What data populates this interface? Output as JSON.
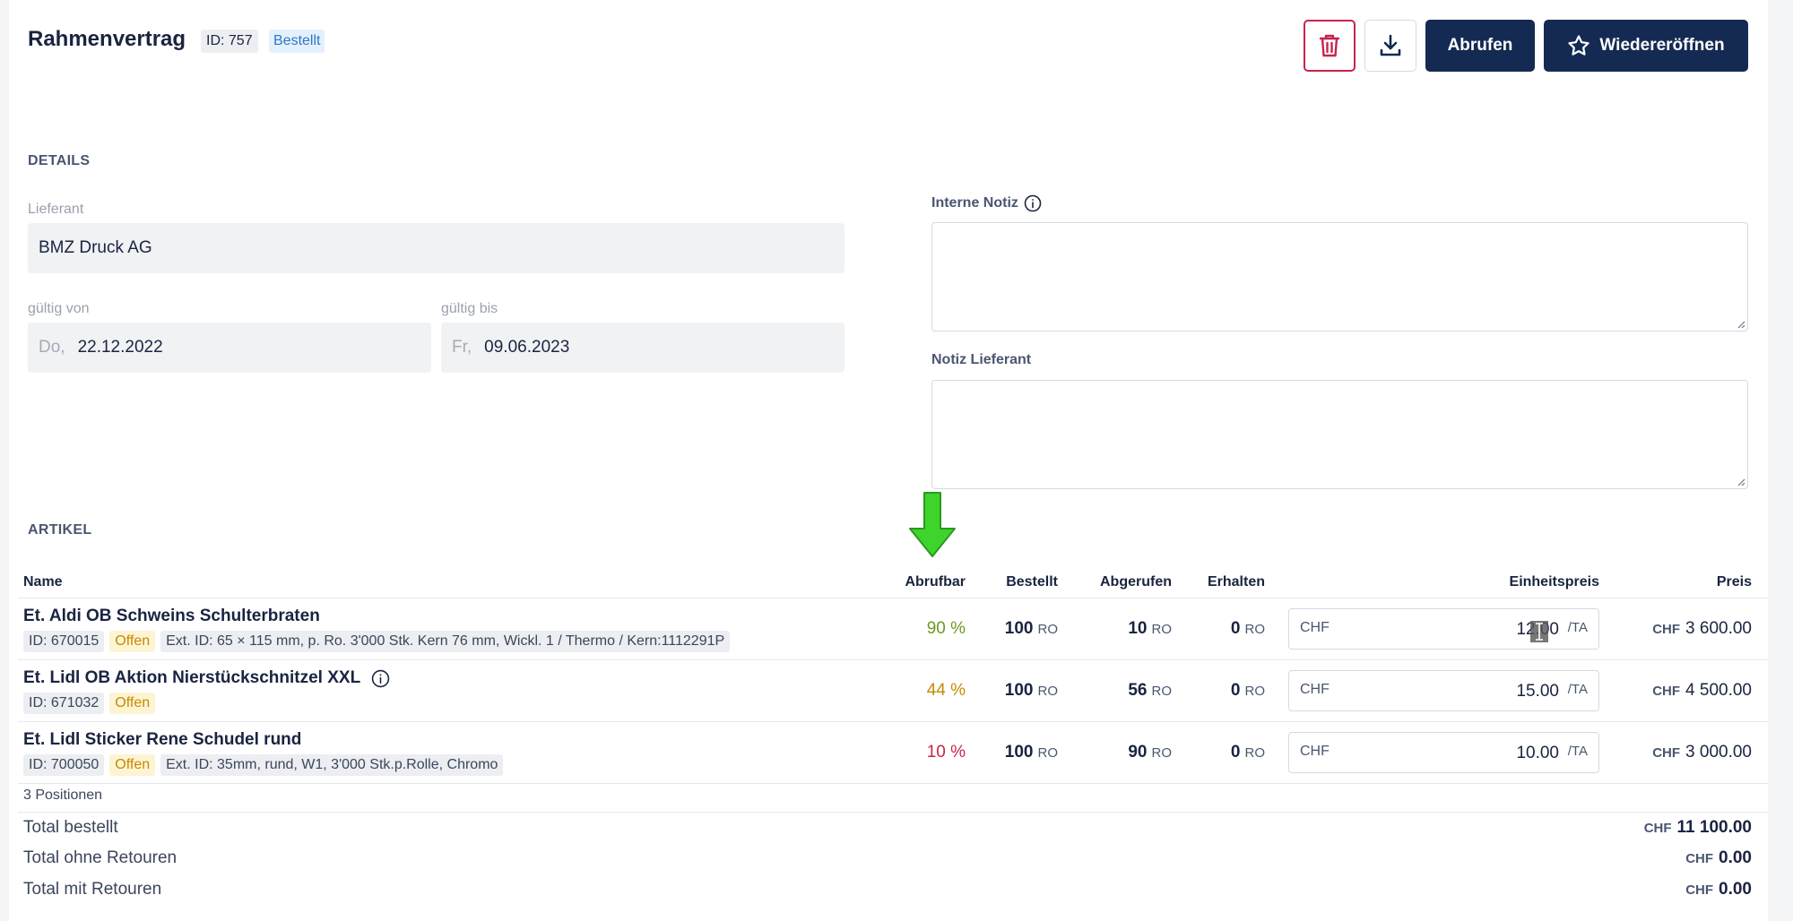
{
  "header": {
    "title": "Rahmenvertrag",
    "id_badge": "ID: 757",
    "status": "Bestellt",
    "buttons": {
      "abrufen": "Abrufen",
      "reopen": "Wiedereröffnen"
    }
  },
  "details": {
    "section": "DETAILS",
    "supplier_label": "Lieferant",
    "supplier": "BMZ Druck AG",
    "valid_from_label": "gültig von",
    "valid_from_day": "Do,",
    "valid_from": "22.12.2022",
    "valid_to_label": "gültig bis",
    "valid_to_day": "Fr,",
    "valid_to": "09.06.2023",
    "internal_note_label": "Interne Notiz",
    "supplier_note_label": "Notiz Lieferant"
  },
  "articles": {
    "section": "ARTIKEL",
    "columns": {
      "name": "Name",
      "abrufbar": "Abrufbar",
      "bestellt": "Bestellt",
      "abgerufen": "Abgerufen",
      "erhalten": "Erhalten",
      "einheitspreis": "Einheitspreis",
      "preis": "Preis"
    },
    "rows": [
      {
        "name": "Et. Aldi OB Schweins Schulterbraten",
        "id": "ID: 670015",
        "status": "Offen",
        "ext": "Ext. ID: 65 × 115 mm, p. Ro. 3'000 Stk. Kern 76 mm, Wickl. 1 / Thermo / Kern:1112291P",
        "abrufbar": "90 %",
        "bestellt": "100",
        "abgerufen": "10",
        "erhalten": "0",
        "unit": "RO",
        "currency": "CHF",
        "unit_price": "12.00",
        "per": "/TA",
        "price": "3 600.00"
      },
      {
        "name": "Et. Lidl OB Aktion Nierstückschnitzel XXL",
        "id": "ID: 671032",
        "status": "Offen",
        "ext": "",
        "abrufbar": "44 %",
        "bestellt": "100",
        "abgerufen": "56",
        "erhalten": "0",
        "unit": "RO",
        "currency": "CHF",
        "unit_price": "15.00",
        "per": "/TA",
        "price": "4 500.00"
      },
      {
        "name": "Et. Lidl Sticker Rene Schudel rund",
        "id": "ID: 700050",
        "status": "Offen",
        "ext": "Ext. ID: 35mm, rund, W1, 3'000 Stk.p.Rolle, Chromo",
        "abrufbar": "10 %",
        "bestellt": "100",
        "abgerufen": "90",
        "erhalten": "0",
        "unit": "RO",
        "currency": "CHF",
        "unit_price": "10.00",
        "per": "/TA",
        "price": "3 000.00"
      }
    ],
    "positions": "3 Positionen"
  },
  "totals": {
    "currency": "CHF",
    "ordered_label": "Total bestellt",
    "ordered": "11 100.00",
    "without_returns_label": "Total ohne Retouren",
    "without_returns": "0.00",
    "with_returns_label": "Total mit Retouren",
    "with_returns": "0.00"
  },
  "colors": {
    "accent_dark": "#142a52",
    "delete_red": "#c7244d",
    "abrufbar_high": "#6b9a1f",
    "abrufbar_mid": "#c48a00",
    "abrufbar_low": "#c7244d",
    "arrow_green": "#3ed42c"
  },
  "icons": [
    "trash-icon",
    "download-icon",
    "star-icon",
    "info-icon",
    "arrow-down-icon"
  ]
}
